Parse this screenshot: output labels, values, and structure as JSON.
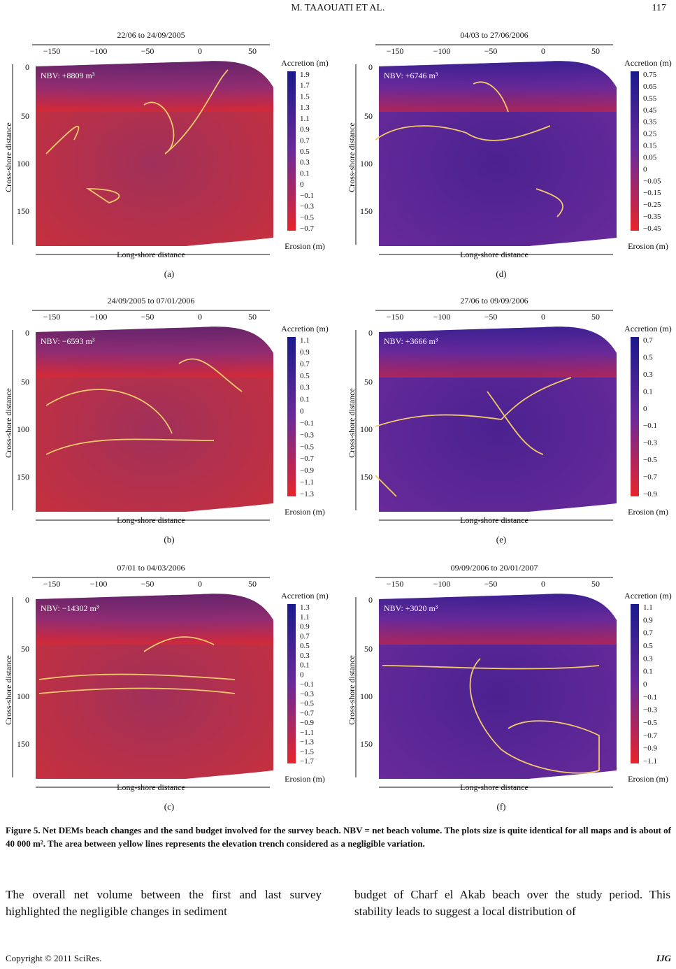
{
  "header": {
    "authors": "M. TAAOUATI ET AL.",
    "page_number": "117"
  },
  "panels": [
    {
      "id": "a",
      "title": "22/06 to 24/09/2005",
      "nbv": "NBV: +8809 m³",
      "label": "(a)",
      "cb_top": "Accretion (m)",
      "cb_bottom": "Erosion (m)",
      "cb_ticks": [
        "1.9",
        "1.7",
        "1.5",
        "1.3",
        "1.1",
        "0.9",
        "0.7",
        "0.5",
        "0.3",
        "0.1",
        "0",
        "−0.1",
        "−0.3",
        "−0.5",
        "−0.7"
      ],
      "xticks": [
        "−150",
        "−100",
        "−50",
        "0",
        "50"
      ],
      "yticks": [
        "0",
        "50",
        "100",
        "150"
      ],
      "xlabel": "Long-shore distance",
      "ylabel": "Cross-shore distance"
    },
    {
      "id": "d",
      "title": "04/03 to 27/06/2006",
      "nbv": "NBV: +6746 m³",
      "label": "(d)",
      "cb_top": "Accretion (m)",
      "cb_bottom": "Erosion (m)",
      "cb_ticks": [
        "0.75",
        "0.65",
        "0.55",
        "0.45",
        "0.35",
        "0.25",
        "0.15",
        "0.05",
        "0",
        "−0.05",
        "−0.15",
        "−0.25",
        "−0.35",
        "−0.45"
      ],
      "xticks": [
        "−150",
        "−100",
        "−50",
        "0",
        "50"
      ],
      "yticks": [
        "0",
        "50",
        "100",
        "150"
      ],
      "xlabel": "Long-shore distance",
      "ylabel": "Cross-shore distance"
    },
    {
      "id": "b",
      "title": "24/09/2005 to 07/01/2006",
      "nbv": "NBV: −6593 m³",
      "label": "(b)",
      "cb_top": "Accretion (m)",
      "cb_bottom": "Erosion (m)",
      "cb_ticks": [
        "1.1",
        "0.9",
        "0.7",
        "0.5",
        "0.3",
        "0.1",
        "0",
        "−0.1",
        "−0.3",
        "−0.5",
        "−0.7",
        "−0.9",
        "−1.1",
        "−1.3"
      ],
      "xticks": [
        "−150",
        "−100",
        "−50",
        "0",
        "50"
      ],
      "yticks": [
        "0",
        "50",
        "100",
        "150"
      ],
      "xlabel": "Long-shore distance",
      "ylabel": "Cross-shore distance"
    },
    {
      "id": "e",
      "title": "27/06 to 09/09/2006",
      "nbv": "NBV: +3666 m³",
      "label": "(e)",
      "cb_top": "Accretion (m)",
      "cb_bottom": "Erosion (m)",
      "cb_ticks": [
        "0.7",
        "0.5",
        "0.3",
        "0.1",
        "0",
        "−0.1",
        "−0.3",
        "−0.5",
        "−0.7",
        "−0.9"
      ],
      "xticks": [
        "−150",
        "−100",
        "−50",
        "0",
        "50"
      ],
      "yticks": [
        "0",
        "50",
        "100",
        "150"
      ],
      "xlabel": "Long-shore distance",
      "ylabel": "Cross-shore distance"
    },
    {
      "id": "c",
      "title": "07/01 to 04/03/2006",
      "nbv": "NBV: −14302 m³",
      "label": "(c)",
      "cb_top": "Accretion (m)",
      "cb_bottom": "Erosion (m)",
      "cb_ticks": [
        "1.3",
        "1.1",
        "0.9",
        "0.7",
        "0.5",
        "0.3",
        "0.1",
        "0",
        "−0.1",
        "−0.3",
        "−0.5",
        "−0.7",
        "−0.9",
        "−1.1",
        "−1.3",
        "−1.5",
        "−1.7"
      ],
      "xticks": [
        "−150",
        "−100",
        "−50",
        "0",
        "50"
      ],
      "yticks": [
        "0",
        "50",
        "100",
        "150"
      ],
      "xlabel": "Long-shore distance",
      "ylabel": "Cross-shore distance"
    },
    {
      "id": "f",
      "title": "09/09/2006 to 20/01/2007",
      "nbv": "NBV: +3020 m³",
      "label": "(f)",
      "cb_top": "Accretion (m)",
      "cb_bottom": "Erosion (m)",
      "cb_ticks": [
        "1.1",
        "0.9",
        "0.7",
        "0.5",
        "0.3",
        "0.1",
        "0",
        "−0.1",
        "−0.3",
        "−0.5",
        "−0.7",
        "−0.9",
        "−1.1"
      ],
      "xticks": [
        "−150",
        "−100",
        "−50",
        "0",
        "50"
      ],
      "yticks": [
        "0",
        "50",
        "100",
        "150"
      ],
      "xlabel": "Long-shore distance",
      "ylabel": "Cross-shore distance"
    }
  ],
  "figure_caption": "Figure 5. Net DEMs beach changes and the sand budget involved for the survey beach. NBV = net beach volume. The plots size is quite identical for all maps and is about of 40 000 m². The area between yellow lines represents the elevation trench considered as a negligible variation.",
  "body_left": "The overall net volume between the first and last survey highlighted the negligible changes in sediment",
  "body_right": "budget of Charf el Akab beach over the study period. This stability leads to suggest a local distribution of",
  "footer": {
    "copyright": "Copyright © 2011 SciRes.",
    "journal": "IJG"
  },
  "colors": {
    "accretion": "#1a1a8c",
    "mid": "#6a2a9a",
    "erosion": "#e8242a",
    "contour": "#f2c96a"
  }
}
